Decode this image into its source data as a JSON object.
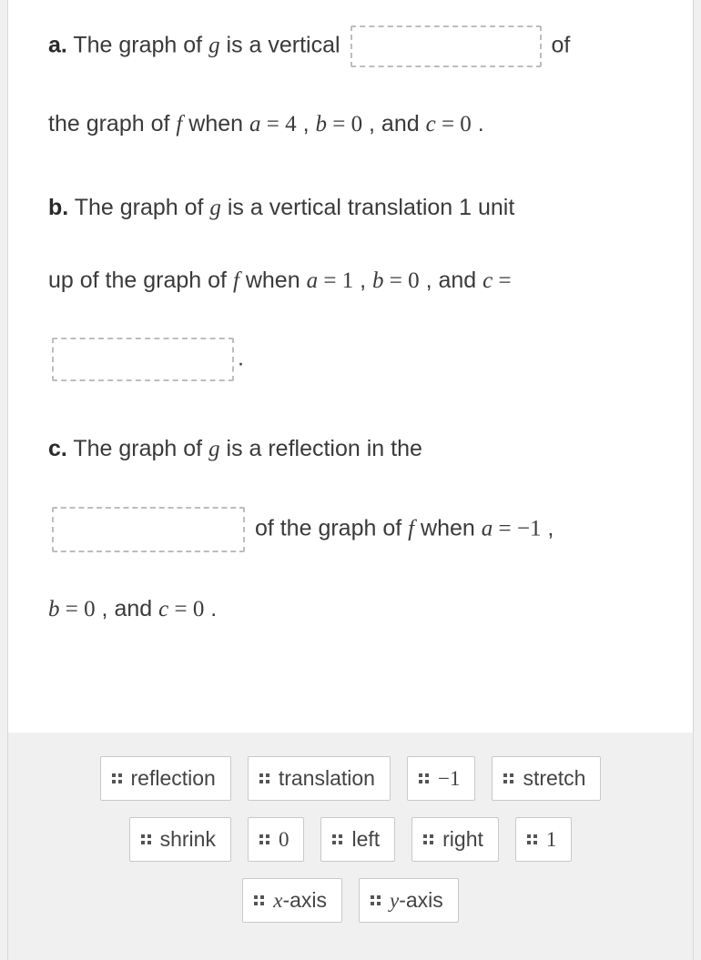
{
  "partA": {
    "label": "a.",
    "t1": " The graph of ",
    "g": "g",
    "t2": " is a vertical ",
    "t3": " of",
    "t4": "the graph of ",
    "f": "f",
    "t5": "  when ",
    "eq1_lhs": "a",
    "eq_sym": " = ",
    "eq1_rhs": "4",
    "comma": " , ",
    "eq2_lhs": "b",
    "eq2_rhs": "0",
    "and": " , and ",
    "eq3_lhs": "c",
    "eq3_rhs": "0",
    "period": " ."
  },
  "partB": {
    "label": "b.",
    "t1": " The graph of ",
    "g": "g",
    "t2": " is a vertical translation 1 unit",
    "t3": "up of the graph of ",
    "f": "f",
    "t4": " when ",
    "eq1_lhs": "a",
    "eq_sym": " = ",
    "eq1_rhs": "1",
    "comma": " , ",
    "eq2_lhs": "b",
    "eq2_rhs": "0",
    "and": " , and ",
    "eq3_lhs": "c",
    "eq3_eqsym": " =",
    "period": "."
  },
  "partC": {
    "label": "c.",
    "t1": " The graph of ",
    "g": "g",
    "t2": " is a reflection in the",
    "t3": " of the graph of  ",
    "f": "f",
    "t4": " when ",
    "eq1_lhs": "a",
    "eq_sym": " = ",
    "eq1_rhs": "−1",
    "comma": " ,",
    "eq2_lhs": "b",
    "eq2_rhs": "0",
    "and": " , and ",
    "eq3_lhs": "c",
    "eq3_rhs": "0",
    "period": " ."
  },
  "choices": {
    "row1": [
      {
        "text": "reflection",
        "math": false
      },
      {
        "text": "translation",
        "math": false
      },
      {
        "text": "−1",
        "math": true
      },
      {
        "text": "stretch",
        "math": false
      }
    ],
    "row2": [
      {
        "text": "shrink",
        "math": false
      },
      {
        "text": "0",
        "math": true
      },
      {
        "text": "left",
        "math": false
      },
      {
        "text": "right",
        "math": false
      },
      {
        "text": "1",
        "math": true
      }
    ],
    "row3": [
      {
        "text_pre": "x",
        "text_post": "-axis"
      },
      {
        "text_pre": "y",
        "text_post": "-axis"
      }
    ]
  }
}
